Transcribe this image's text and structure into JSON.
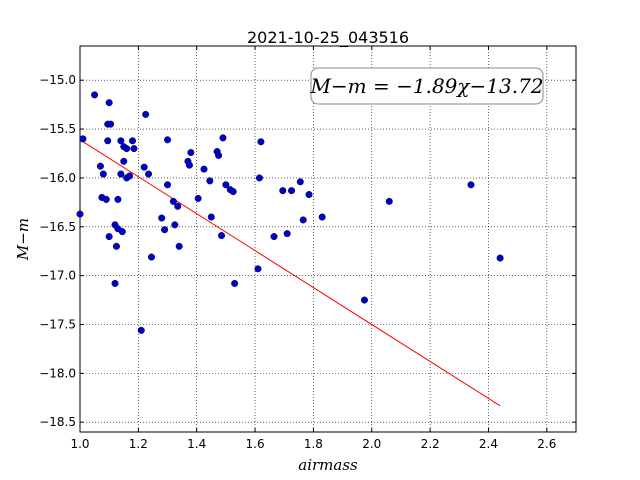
{
  "chart_data": {
    "type": "scatter",
    "title": "2021-10-25_043516",
    "xlabel": "airmass",
    "ylabel": "M−m",
    "xlim": [
      1.0,
      2.7
    ],
    "ylim": [
      -18.6,
      -14.65
    ],
    "y_inverted": true,
    "grid": true,
    "x_ticks": [
      1.0,
      1.2,
      1.4,
      1.6,
      1.8,
      2.0,
      2.2,
      2.4,
      2.6
    ],
    "x_tick_labels": [
      "1.0",
      "1.2",
      "1.4",
      "1.6",
      "1.8",
      "2.0",
      "2.2",
      "2.4",
      "2.6"
    ],
    "y_ticks": [
      -15.0,
      -15.5,
      -16.0,
      -16.5,
      -17.0,
      -17.5,
      -18.0,
      -18.5
    ],
    "y_tick_labels": [
      "−15.0",
      "−15.5",
      "−16.0",
      "−16.5",
      "−17.0",
      "−17.5",
      "−18.0",
      "−18.5"
    ],
    "fit_label": "M−m = −1.89χ−13.72",
    "fit_line": {
      "slope": -1.89,
      "intercept": -13.72,
      "x_range": [
        1.0,
        2.44
      ],
      "color": "#ff0000"
    },
    "series": [
      {
        "color": "#0000cc",
        "x": [
          1.0,
          1.01,
          1.05,
          1.07,
          1.075,
          1.08,
          1.09,
          1.095,
          1.095,
          1.1,
          1.1,
          1.105,
          1.12,
          1.12,
          1.125,
          1.13,
          1.13,
          1.14,
          1.14,
          1.145,
          1.15,
          1.15,
          1.16,
          1.16,
          1.17,
          1.18,
          1.185,
          1.21,
          1.22,
          1.225,
          1.235,
          1.245,
          1.28,
          1.29,
          1.3,
          1.3,
          1.32,
          1.325,
          1.335,
          1.34,
          1.37,
          1.375,
          1.38,
          1.405,
          1.425,
          1.445,
          1.45,
          1.47,
          1.475,
          1.485,
          1.49,
          1.5,
          1.515,
          1.525,
          1.53,
          1.61,
          1.615,
          1.62,
          1.665,
          1.695,
          1.71,
          1.725,
          1.755,
          1.765,
          1.785,
          1.83,
          1.975,
          2.06,
          2.34,
          2.44
        ],
        "y": [
          -16.37,
          -15.6,
          -15.15,
          -15.88,
          -16.2,
          -15.96,
          -16.22,
          -15.62,
          -15.45,
          -15.23,
          -16.6,
          -15.45,
          -17.08,
          -16.48,
          -16.7,
          -16.22,
          -16.52,
          -15.62,
          -15.96,
          -16.55,
          -15.83,
          -15.68,
          -15.7,
          -16.0,
          -15.98,
          -15.62,
          -15.7,
          -17.56,
          -15.89,
          -15.35,
          -15.96,
          -16.81,
          -16.41,
          -16.53,
          -16.07,
          -15.61,
          -16.24,
          -16.48,
          -16.29,
          -16.7,
          -15.83,
          -15.87,
          -15.74,
          -16.21,
          -15.91,
          -16.03,
          -16.4,
          -15.73,
          -15.77,
          -16.59,
          -15.59,
          -16.07,
          -16.12,
          -16.14,
          -17.08,
          -16.93,
          -16.0,
          -15.63,
          -16.6,
          -16.13,
          -16.57,
          -16.13,
          -16.04,
          -16.43,
          -16.17,
          -16.4,
          -17.25,
          -16.24,
          -16.07,
          -16.82
        ]
      }
    ]
  }
}
